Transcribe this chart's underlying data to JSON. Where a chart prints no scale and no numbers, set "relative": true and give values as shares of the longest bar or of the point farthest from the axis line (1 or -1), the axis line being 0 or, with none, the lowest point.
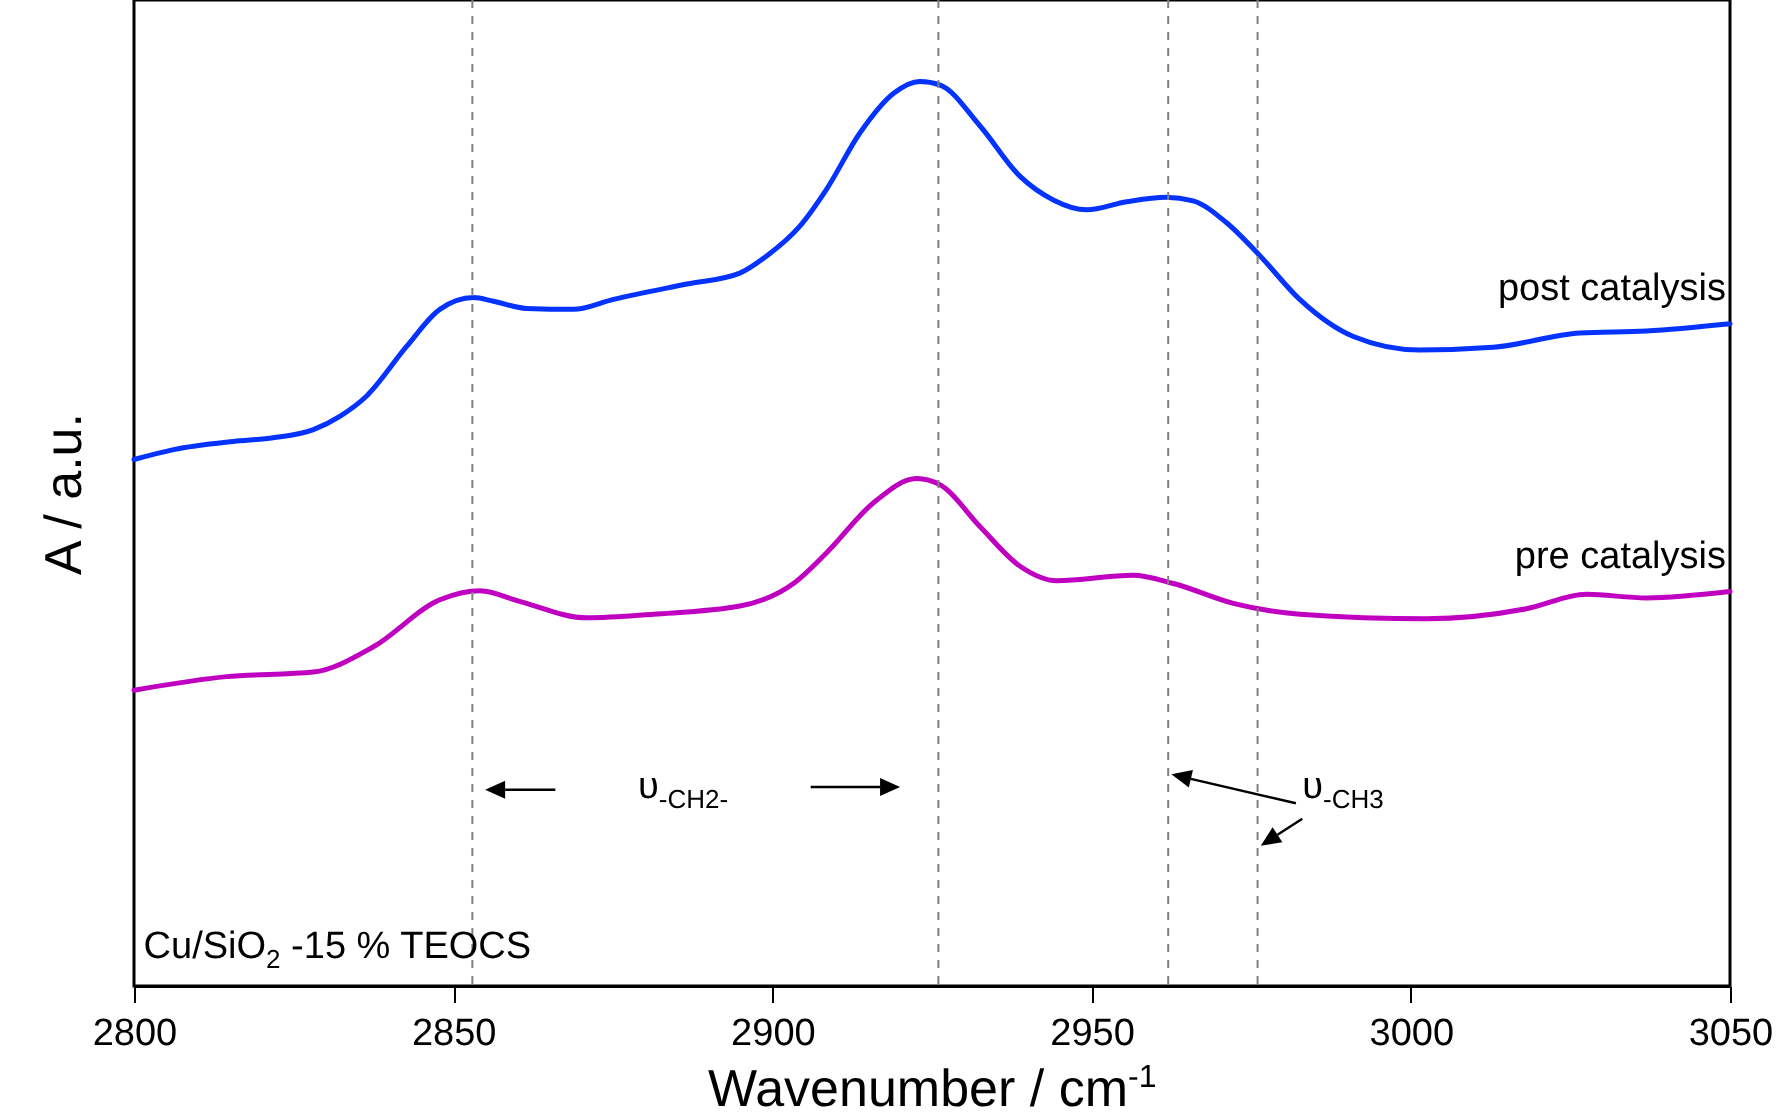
{
  "chart_data": {
    "type": "line",
    "relative": true,
    "xlabel": "Wavenumber / cm$^{-1}$",
    "ylabel": "A / a.u.",
    "xlim": [
      2800,
      3050
    ],
    "xticks": [
      2800,
      2850,
      2900,
      2950,
      3000,
      3050
    ],
    "grid": false,
    "annotations": [
      "υ$_{-CH2-}$",
      "υ$_{-CH3}$",
      "Cu/SiO$_{2}$ -15 % TEOCS"
    ],
    "ref_lines": [
      {
        "axis": "x",
        "value": 2853,
        "color": "#808080",
        "line_style": "dashed"
      },
      {
        "axis": "x",
        "value": 2926,
        "color": "#808080",
        "line_style": "dashed"
      },
      {
        "axis": "x",
        "value": 2962,
        "color": "#808080",
        "line_style": "dashed"
      },
      {
        "axis": "x",
        "value": 2976,
        "color": "#808080",
        "line_style": "dashed"
      }
    ],
    "series": [
      {
        "name": "post catalysis",
        "color": "#0433ff",
        "x": [
          2800,
          2806.2,
          2815.6,
          2821.8,
          2828.1,
          2832.3,
          2836.4,
          2842.7,
          2847.9,
          2853.2,
          2856.3,
          2861.5,
          2868.8,
          2875.1,
          2886.6,
          2894.9,
          2899.1,
          2904.3,
          2908.5,
          2913.7,
          2919.0,
          2923.1,
          2926.3,
          2932.5,
          2938.8,
          2944.0,
          2949.2,
          2955.5,
          2961.7,
          2965.9,
          2971.1,
          2976.4,
          2982.6,
          2991.0,
          3001.4,
          3012.9,
          3026.5,
          3036.9,
          3050
        ],
        "values": [
          0.582,
          0.593,
          0.602,
          0.606,
          0.615,
          0.63,
          0.652,
          0.707,
          0.748,
          0.761,
          0.757,
          0.749,
          0.748,
          0.759,
          0.776,
          0.788,
          0.807,
          0.84,
          0.881,
          0.943,
          0.987,
          1.0,
          0.996,
          0.951,
          0.895,
          0.869,
          0.858,
          0.867,
          0.872,
          0.868,
          0.844,
          0.807,
          0.759,
          0.718,
          0.703,
          0.706,
          0.722,
          0.724,
          0.732
        ]
      },
      {
        "name": "pre catalysis",
        "color": "#c000c0",
        "x": [
          2800,
          2814.5,
          2828.1,
          2837.5,
          2847.9,
          2854.2,
          2860.5,
          2870.9,
          2881.4,
          2894.9,
          2903.3,
          2908.5,
          2915.8,
          2922.6,
          2926.3,
          2932.5,
          2938.8,
          2944.5,
          2956.5,
          2962.8,
          2972.2,
          2982.6,
          3002.5,
          3018.1,
          3027.5,
          3036.9,
          3050
        ],
        "values": [
          0.327,
          0.342,
          0.347,
          0.375,
          0.427,
          0.437,
          0.425,
          0.407,
          0.411,
          0.42,
          0.445,
          0.479,
          0.534,
          0.561,
          0.554,
          0.508,
          0.464,
          0.448,
          0.454,
          0.445,
          0.423,
          0.411,
          0.406,
          0.417,
          0.433,
          0.429,
          0.436
        ]
      }
    ]
  }
}
